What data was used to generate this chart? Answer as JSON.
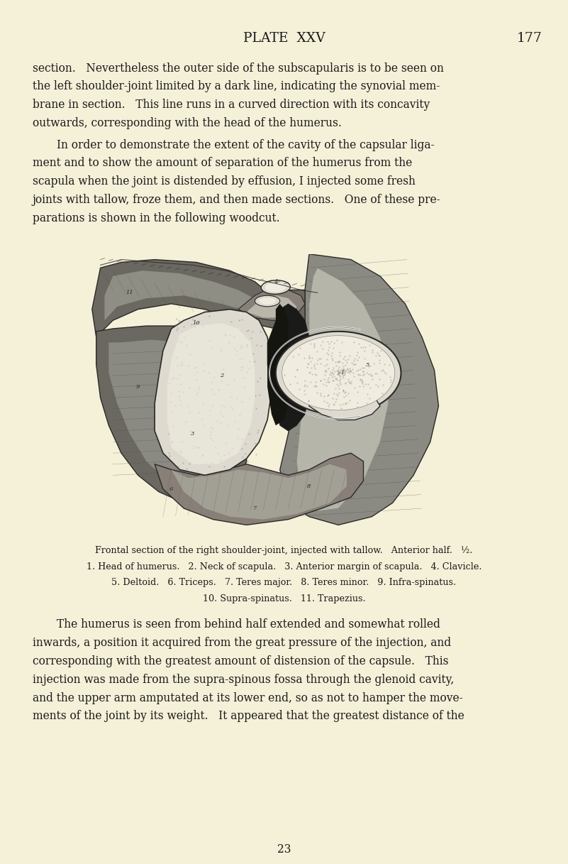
{
  "bg_color": "#f5f0d8",
  "text_color": "#1a1a1a",
  "page_width": 8.01,
  "page_height": 12.17,
  "header_title": "PLATE  XXV",
  "header_page": "177",
  "caption_line1": "Frontal section of the right shoulder-joint, injected with tallow.   Anterior half.   ½.",
  "caption_line2": "1. Head of humerus.   2. Neck of scapula.   3. Anterior margin of scapula.   4. Clavicle.",
  "caption_line3": "5. Deltoid.   6. Triceps.   7. Teres major.   8. Teres minor.   9. Infra-spinatus.",
  "caption_line4": "10. Supra-spinatus.   11. Trapezius.",
  "footer_num": "23",
  "body_font_size": 11.2,
  "caption_font_size": 9.2,
  "header_font_size": 13.5
}
